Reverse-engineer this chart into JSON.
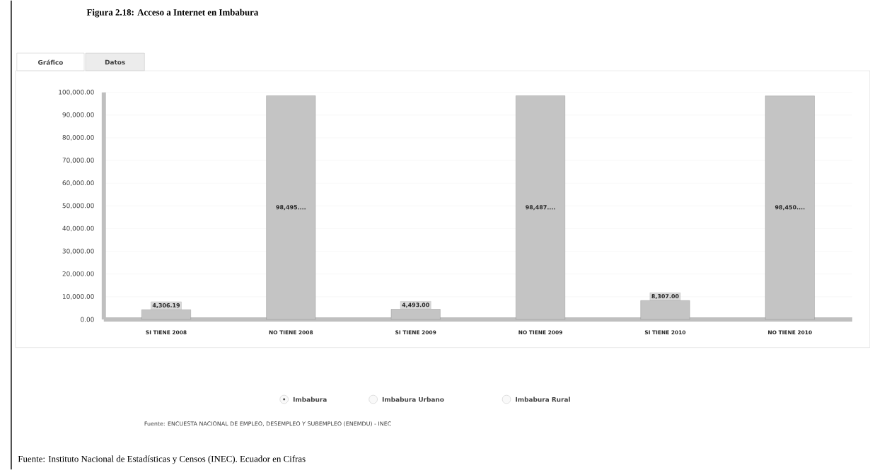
{
  "chart_data": {
    "type": "bar",
    "title": "Figura 2.18: Acceso a Internet en Imbabura",
    "categories": [
      "SI TIENE 2008",
      "NO TIENE 2008",
      "SI TIENE 2009",
      "NO TIENE 2009",
      "SI TIENE 2010",
      "NO TIENE 2010"
    ],
    "values": [
      4306.19,
      98495,
      4493,
      98487,
      8307,
      98450
    ],
    "value_labels": [
      "4,306.19",
      "98,495....",
      "4,493.00",
      "98,487....",
      "8,307.00",
      "98,450...."
    ],
    "color": "#c4c4c4",
    "ylim": [
      0,
      100000
    ],
    "yticks": [
      {
        "value": 0,
        "label": "0.00"
      },
      {
        "value": 10000,
        "label": "10,000.00"
      },
      {
        "value": 20000,
        "label": "20,000.00"
      },
      {
        "value": 30000,
        "label": "30,000.00"
      },
      {
        "value": 40000,
        "label": "40,000.00"
      },
      {
        "value": 50000,
        "label": "50,000.00"
      },
      {
        "value": 60000,
        "label": "60,000.00"
      },
      {
        "value": 70000,
        "label": "70,000.00"
      },
      {
        "value": 80000,
        "label": "80,000.00"
      },
      {
        "value": 90000,
        "label": "90,000.00"
      },
      {
        "value": 100000,
        "label": "100,000.00"
      }
    ],
    "grid": "y",
    "annotations": [
      "Gráfico",
      "Datos",
      "Imbabura",
      "Imbabura Urbano",
      "Imbabura Rural",
      "Fuente:   ENCUESTA NACIONAL DE EMPLEO, DESEMPLEO Y SUBEMPLEO (ENEMDU) - INEC",
      "Fuente: Instituto Nacional de Estadísticas y Censos (INEC). Ecuador en Cifras"
    ]
  }
}
